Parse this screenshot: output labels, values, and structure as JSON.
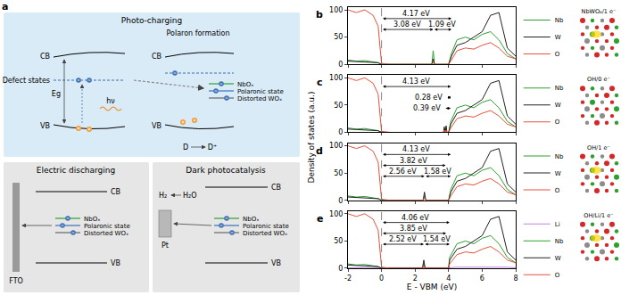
{
  "panel_a": {
    "label": "a",
    "photo_charging": {
      "title": "Photo-charging",
      "cb": "CB",
      "vb": "VB",
      "defect_states": "Defect states",
      "eg": "Eg",
      "photon": "hν",
      "polaron_formation": "Polaron formation",
      "nbox": "NbOₓ",
      "polaronic_state": "Polaronic state",
      "distorted_wox": "Distorted WOₓ",
      "donor": "D",
      "donor_oxidized": "D⁺"
    },
    "electric_discharging": {
      "title": "Electric discharging",
      "electrode": "FTO",
      "cb": "CB",
      "vb": "VB",
      "nbox": "NbOₓ",
      "polaronic_state": "Polaronic state",
      "distorted_wox": "Distorted WOₓ"
    },
    "dark_photocatalysis": {
      "title": "Dark photocatalysis",
      "cocatalyst": "Pt",
      "reactant": "H₂O",
      "product": "H₂",
      "cb": "CB",
      "vb": "VB",
      "nbox": "NbOₓ",
      "polaronic_state": "Polaronic state",
      "distorted_wox": "Distorted WOₓ"
    }
  },
  "dos_axes": {
    "xlabel": "E - VBM (eV)",
    "ylabel": "Density of states (a.u.)"
  },
  "chart_data": [
    {
      "type": "line",
      "panel": "b",
      "structure_label": "NbWO₆/1 e⁻",
      "legend": "upper right",
      "tick_labels": "y",
      "xlim": [
        -2,
        8
      ],
      "xticks": [
        -2,
        0,
        2,
        4,
        6,
        8
      ],
      "ylim": [
        0,
        105
      ],
      "yticks": [
        0,
        50,
        100
      ],
      "x": [
        -2,
        -1.5,
        -1,
        -0.5,
        -0.2,
        0,
        0.5,
        1,
        1.5,
        2,
        2.5,
        3.0,
        3.08,
        3.16,
        3.5,
        4.0,
        4.17,
        4.5,
        5,
        5.5,
        6,
        6.5,
        7,
        7.5,
        8
      ],
      "series": [
        {
          "name": "Nb",
          "color": "#2ca02c",
          "values": [
            8,
            6,
            7,
            5,
            3,
            0,
            0,
            0,
            0,
            0,
            0,
            0,
            25,
            0,
            0,
            0,
            20,
            45,
            50,
            45,
            55,
            60,
            45,
            20,
            10
          ]
        },
        {
          "name": "W",
          "color": "#222222",
          "values": [
            6,
            5,
            5,
            4,
            3,
            0,
            0,
            0,
            0,
            0,
            0,
            0,
            10,
            0,
            0,
            0,
            15,
            35,
            40,
            50,
            60,
            90,
            95,
            30,
            15
          ]
        },
        {
          "name": "O",
          "color": "#e8503a",
          "values": [
            100,
            95,
            100,
            90,
            70,
            2,
            0,
            0,
            0,
            0,
            0,
            0,
            4,
            0,
            0,
            0,
            8,
            25,
            30,
            28,
            35,
            40,
            30,
            15,
            10
          ]
        }
      ],
      "gaps": [
        {
          "from": 0,
          "to": 4.17,
          "label": "4.17 eV"
        },
        {
          "from": 0,
          "to": 3.08,
          "label": "3.08 eV"
        },
        {
          "from": 3.08,
          "to": 4.17,
          "label": "1.09 eV"
        }
      ]
    },
    {
      "type": "line",
      "panel": "c",
      "structure_label": "OH/0 e⁻",
      "legend": "upper right",
      "tick_labels": "y",
      "xlim": [
        -2,
        8
      ],
      "xticks": [
        -2,
        0,
        2,
        4,
        6,
        8
      ],
      "ylim": [
        0,
        105
      ],
      "yticks": [
        0,
        50,
        100
      ],
      "x": [
        -2,
        -1.5,
        -1,
        -0.5,
        -0.2,
        0,
        0.5,
        1,
        1.5,
        2,
        2.5,
        3,
        3.5,
        3.7,
        3.74,
        3.8,
        3.85,
        3.9,
        4.0,
        4.13,
        4.5,
        5,
        5.5,
        6,
        6.5,
        7,
        7.5,
        8
      ],
      "series": [
        {
          "name": "Nb",
          "color": "#2ca02c",
          "values": [
            8,
            6,
            7,
            5,
            3,
            0,
            0,
            0,
            0,
            0,
            0,
            0,
            0,
            0,
            6,
            0,
            6,
            0,
            0,
            20,
            45,
            50,
            45,
            55,
            60,
            45,
            20,
            10
          ]
        },
        {
          "name": "W",
          "color": "#222222",
          "values": [
            6,
            5,
            5,
            4,
            3,
            0,
            0,
            0,
            0,
            0,
            0,
            0,
            0,
            0,
            10,
            0,
            12,
            0,
            0,
            15,
            35,
            40,
            50,
            60,
            90,
            95,
            30,
            15
          ]
        },
        {
          "name": "O",
          "color": "#e8503a",
          "values": [
            100,
            95,
            100,
            90,
            70,
            2,
            0,
            0,
            0,
            0,
            0,
            0,
            0,
            0,
            4,
            0,
            4,
            0,
            0,
            8,
            25,
            30,
            28,
            35,
            40,
            30,
            15,
            10
          ]
        }
      ],
      "gaps": [
        {
          "from": 0,
          "to": 4.13,
          "label": "4.13 eV"
        },
        {
          "from": 3.85,
          "to": 4.13,
          "label": "0.28 eV"
        },
        {
          "from": 3.74,
          "to": 4.13,
          "label": "0.39 eV"
        }
      ]
    },
    {
      "type": "line",
      "panel": "d",
      "structure_label": "OH/1 e⁻",
      "legend": "upper right",
      "tick_labels": "y",
      "xlim": [
        -2,
        8
      ],
      "xticks": [
        -2,
        0,
        2,
        4,
        6,
        8
      ],
      "ylim": [
        0,
        105
      ],
      "yticks": [
        0,
        50,
        100
      ],
      "x": [
        -2,
        -1.5,
        -1,
        -0.5,
        -0.2,
        0,
        0.5,
        1,
        1.5,
        2,
        2.48,
        2.56,
        2.64,
        3,
        3.5,
        4.0,
        4.13,
        4.5,
        5,
        5.5,
        6,
        6.5,
        7,
        7.5,
        8
      ],
      "series": [
        {
          "name": "Nb",
          "color": "#2ca02c",
          "values": [
            8,
            6,
            7,
            5,
            3,
            0,
            0,
            0,
            0,
            0,
            0,
            8,
            0,
            0,
            0,
            0,
            20,
            45,
            50,
            45,
            55,
            60,
            45,
            20,
            10
          ]
        },
        {
          "name": "W",
          "color": "#222222",
          "values": [
            6,
            5,
            5,
            4,
            3,
            0,
            0,
            0,
            0,
            0,
            0,
            15,
            0,
            0,
            0,
            0,
            15,
            35,
            40,
            50,
            60,
            90,
            95,
            30,
            15
          ]
        },
        {
          "name": "O",
          "color": "#e8503a",
          "values": [
            100,
            95,
            100,
            90,
            70,
            2,
            0,
            0,
            0,
            0,
            0,
            5,
            0,
            0,
            0,
            0,
            8,
            25,
            30,
            28,
            35,
            40,
            30,
            15,
            10
          ]
        }
      ],
      "gaps": [
        {
          "from": 0,
          "to": 4.13,
          "label": "4.13 eV"
        },
        {
          "from": 0,
          "to": 3.82,
          "label": "3.82 eV"
        },
        {
          "from": 0,
          "to": 2.56,
          "label": "2.56 eV"
        },
        {
          "from": 2.56,
          "to": 4.13,
          "label": "1.58 eV"
        }
      ]
    },
    {
      "type": "line",
      "panel": "e",
      "structure_label": "OH/Li/1 e⁻",
      "legend": "upper right",
      "xlim": [
        -2,
        8
      ],
      "xticks": [
        -2,
        0,
        2,
        4,
        6,
        8
      ],
      "ylim": [
        0,
        105
      ],
      "yticks": [
        0,
        50,
        100
      ],
      "x": [
        -2,
        -1.5,
        -1,
        -0.5,
        -0.2,
        0,
        0.5,
        1,
        1.5,
        2,
        2.44,
        2.52,
        2.6,
        3,
        3.5,
        4.0,
        4.06,
        4.5,
        5,
        5.5,
        6,
        6.5,
        7,
        7.5,
        8
      ],
      "series": [
        {
          "name": "Li",
          "color": "#c080e0",
          "values": [
            1,
            1,
            1,
            1,
            0,
            0,
            0,
            0,
            0,
            0,
            0,
            0,
            0,
            0,
            0,
            0,
            1,
            2,
            2,
            2,
            3,
            3,
            3,
            2,
            1
          ]
        },
        {
          "name": "Nb",
          "color": "#2ca02c",
          "values": [
            8,
            6,
            7,
            5,
            3,
            0,
            0,
            0,
            0,
            0,
            0,
            8,
            0,
            0,
            0,
            0,
            20,
            45,
            50,
            45,
            55,
            60,
            45,
            20,
            10
          ]
        },
        {
          "name": "W",
          "color": "#222222",
          "values": [
            6,
            5,
            5,
            4,
            3,
            0,
            0,
            0,
            0,
            0,
            0,
            15,
            0,
            0,
            0,
            0,
            15,
            35,
            40,
            50,
            60,
            90,
            95,
            30,
            15
          ]
        },
        {
          "name": "O",
          "color": "#e8503a",
          "values": [
            100,
            95,
            100,
            90,
            70,
            2,
            0,
            0,
            0,
            0,
            0,
            5,
            0,
            0,
            0,
            0,
            8,
            25,
            30,
            28,
            35,
            40,
            30,
            15,
            10
          ]
        }
      ],
      "gaps": [
        {
          "from": 0,
          "to": 4.06,
          "label": "4.06 eV"
        },
        {
          "from": 0,
          "to": 3.85,
          "label": "3.85 eV"
        },
        {
          "from": 0,
          "to": 2.52,
          "label": "2.52 eV"
        },
        {
          "from": 2.52,
          "to": 4.06,
          "label": "1.54 eV"
        }
      ]
    }
  ]
}
